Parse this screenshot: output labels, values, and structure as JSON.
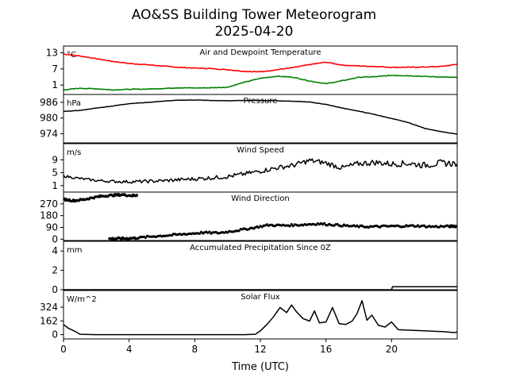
{
  "figure": {
    "title_line1": "AO&SS Building Tower Meteorogram",
    "title_line2": "2025-04-20",
    "xlabel": "Time (UTC)",
    "x_ticks": [
      0,
      4,
      8,
      12,
      16,
      20
    ],
    "xlim": [
      0,
      24
    ]
  },
  "chart_data": [
    {
      "type": "line",
      "title": "Air and Dewpoint Temperature",
      "unit": "°C",
      "ylim": [
        -2.5,
        15.5
      ],
      "yticks": [
        13,
        7,
        1
      ],
      "series": [
        {
          "color": "#ff0000",
          "x": [
            0,
            1,
            2,
            3,
            4,
            5,
            6,
            7,
            8,
            9,
            10,
            11,
            12,
            13,
            14,
            15,
            16,
            17,
            18,
            19,
            20,
            21,
            22,
            23,
            24
          ],
          "values": [
            12.5,
            11.8,
            10.8,
            9.8,
            9.0,
            8.6,
            8.1,
            7.6,
            7.3,
            7.1,
            6.7,
            6.1,
            5.9,
            6.7,
            7.5,
            8.6,
            9.5,
            8.4,
            8.1,
            7.9,
            7.6,
            7.6,
            7.7,
            7.9,
            8.7
          ]
        },
        {
          "color": "#008000",
          "x": [
            0,
            1,
            2,
            3,
            4,
            5,
            6,
            7,
            8,
            9,
            10,
            11,
            12,
            13,
            14,
            15,
            16,
            17,
            18,
            19,
            20,
            21,
            22,
            23,
            24
          ],
          "values": [
            -0.8,
            -0.2,
            -0.4,
            -0.8,
            -0.6,
            -0.5,
            -0.3,
            0.0,
            -0.1,
            0.0,
            0.2,
            2.0,
            3.5,
            4.3,
            3.9,
            2.5,
            1.5,
            2.6,
            3.9,
            4.1,
            4.6,
            4.5,
            4.2,
            4.0,
            3.8
          ]
        }
      ]
    },
    {
      "type": "line",
      "title": "Pressure",
      "unit": "hPa",
      "ylim": [
        970.5,
        989
      ],
      "yticks": [
        986,
        980,
        974
      ],
      "series": [
        {
          "color": "#000000",
          "x": [
            0,
            1,
            2,
            3,
            4,
            5,
            6,
            7,
            8,
            9,
            10,
            11,
            12,
            13,
            14,
            15,
            16,
            17,
            18,
            19,
            20,
            21,
            22,
            23,
            24
          ],
          "values": [
            982.5,
            982.9,
            983.8,
            984.6,
            985.5,
            985.9,
            986.4,
            986.8,
            986.9,
            986.7,
            986.6,
            986.7,
            986.7,
            986.6,
            986.4,
            986.1,
            985.2,
            983.8,
            982.6,
            981.3,
            979.8,
            978.3,
            976.1,
            974.8,
            973.8
          ]
        }
      ]
    },
    {
      "type": "line",
      "title": "Wind Speed",
      "unit": "m/s",
      "ylim": [
        -1,
        14
      ],
      "yticks": [
        9,
        5,
        1
      ],
      "series": [
        {
          "color": "#000000",
          "x": [
            0,
            1,
            2,
            3,
            4,
            5,
            6,
            7,
            8,
            9,
            10,
            11,
            12,
            13,
            14,
            15,
            16,
            17,
            18,
            19,
            20,
            21,
            22,
            23,
            24
          ],
          "values": [
            4.0,
            3.2,
            2.6,
            2.3,
            2.2,
            2.3,
            2.5,
            2.8,
            3.1,
            3.4,
            3.8,
            4.6,
            5.5,
            6.5,
            7.3,
            8.8,
            8.0,
            6.5,
            7.8,
            8.2,
            7.7,
            7.9,
            7.3,
            8.0,
            7.8
          ]
        }
      ]
    },
    {
      "type": "scatter",
      "title": "Wind Direction",
      "ylim": [
        -10,
        360
      ],
      "yticks": [
        270,
        180,
        90,
        0
      ],
      "series": [
        {
          "color": "#000000",
          "x": [
            0,
            0.6,
            1.2,
            1.8,
            2.4,
            3.0,
            3.6,
            4.2,
            4.5
          ],
          "values": [
            305,
            295,
            302,
            318,
            330,
            336,
            340,
            333,
            338
          ]
        },
        {
          "color": "#000000",
          "x": [
            2.8,
            3.3,
            3.9,
            4.5,
            5.5,
            6.5,
            7.5,
            8.5,
            9.5,
            10.5,
            11.5,
            12.5,
            13.5,
            14.5,
            15.5,
            16.5,
            17.5,
            18.5,
            19.5,
            20.5,
            21.5,
            22.5,
            23.5,
            24
          ],
          "values": [
            3,
            5,
            6,
            10,
            22,
            30,
            40,
            50,
            48,
            65,
            85,
            108,
            105,
            110,
            118,
            110,
            100,
            95,
            98,
            100,
            102,
            96,
            98,
            100
          ]
        }
      ]
    },
    {
      "type": "line",
      "title": "Accumulated Precipitation Since 0Z",
      "unit": "mm",
      "ylim": [
        0,
        5
      ],
      "yticks": [
        4,
        2,
        0
      ],
      "series": [
        {
          "color": "#000000",
          "x": [
            0,
            20,
            20.05,
            24
          ],
          "values": [
            0,
            0,
            0.3,
            0.3
          ]
        }
      ]
    },
    {
      "type": "line",
      "title": "Solar Flux",
      "unit": "W/m^2",
      "ylim": [
        -50,
        520
      ],
      "yticks": [
        324,
        162,
        0
      ],
      "series": [
        {
          "color": "#000000",
          "x": [
            0,
            0.3,
            0.7,
            1,
            2,
            4,
            6,
            8,
            10,
            11,
            11.7,
            12,
            12.4,
            12.8,
            13.2,
            13.6,
            13.9,
            14.2,
            14.6,
            15.0,
            15.3,
            15.6,
            16.0,
            16.4,
            16.8,
            17.2,
            17.6,
            17.9,
            18.2,
            18.5,
            18.8,
            19.2,
            19.6,
            20.0,
            20.4,
            20.8,
            21.4,
            22.0,
            22.6,
            23.2,
            23.8,
            24
          ],
          "values": [
            120,
            75,
            40,
            5,
            0,
            0,
            0,
            0,
            0,
            0,
            5,
            45,
            120,
            210,
            320,
            260,
            350,
            270,
            190,
            160,
            280,
            140,
            150,
            320,
            130,
            120,
            160,
            250,
            400,
            170,
            230,
            110,
            90,
            150,
            60,
            55,
            50,
            45,
            40,
            35,
            25,
            30
          ]
        }
      ]
    }
  ]
}
